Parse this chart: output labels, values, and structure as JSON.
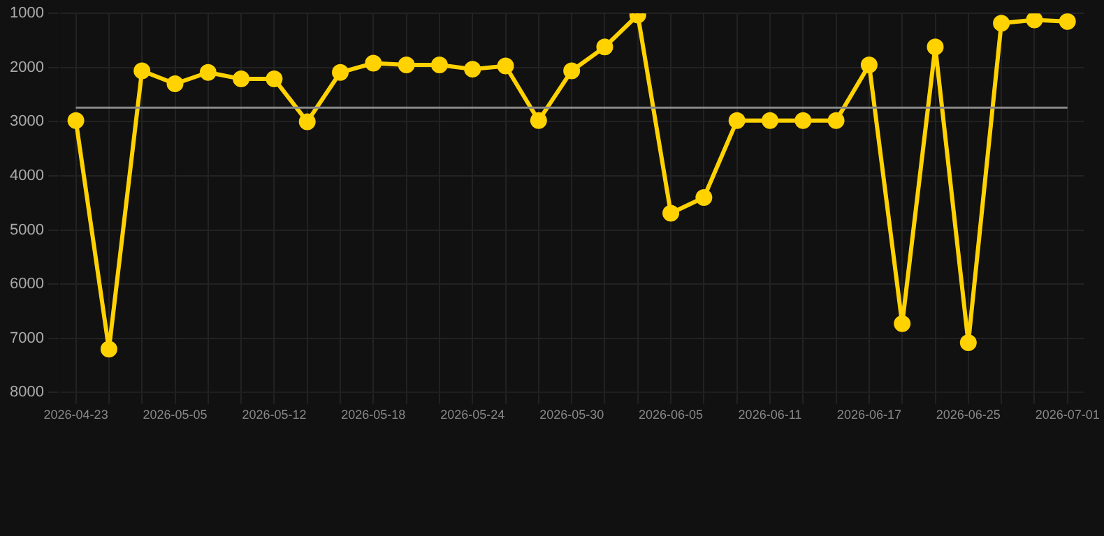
{
  "chart_data": {
    "type": "line",
    "categories": [
      "2026-04-23",
      null,
      null,
      "2026-05-05",
      null,
      null,
      "2026-05-12",
      null,
      null,
      "2026-05-18",
      null,
      null,
      "2026-05-24",
      null,
      null,
      "2026-05-30",
      null,
      null,
      "2026-06-05",
      null,
      null,
      "2026-06-11",
      null,
      null,
      "2026-06-17",
      null,
      null,
      "2026-06-25",
      null,
      null,
      "2026-07-01"
    ],
    "series": [
      {
        "color": "#ffd200",
        "values": [
          2980,
          7200,
          2060,
          2300,
          2090,
          2210,
          2210,
          3000,
          2090,
          1920,
          1950,
          1950,
          2030,
          1970,
          2980,
          2060,
          1620,
          1030,
          4690,
          4400,
          2980,
          2980,
          2980,
          2980,
          1950,
          6730,
          1620,
          7080,
          1180,
          1120,
          1150
        ]
      }
    ],
    "ylim": [
      8000,
      1000
    ],
    "yticks": [
      1000,
      2000,
      3000,
      4000,
      5000,
      6000,
      7000,
      8000
    ],
    "ref_lines": [
      {
        "axis": "y",
        "value": 2740,
        "color": "#888888"
      }
    ],
    "grid": true,
    "marker": "circle",
    "line_style": "solid"
  }
}
